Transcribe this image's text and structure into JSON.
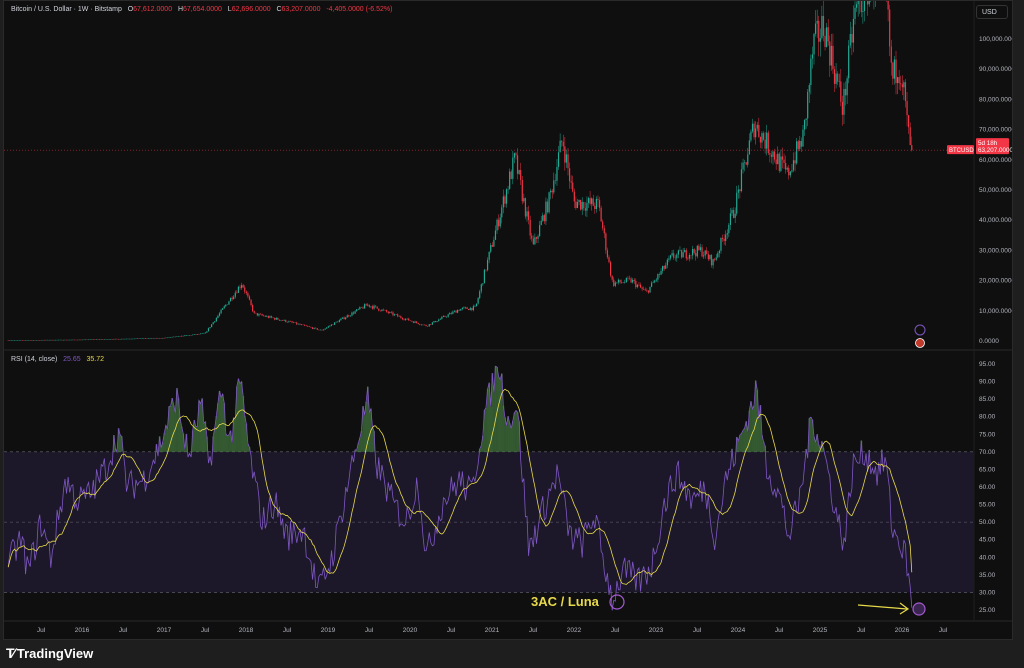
{
  "header": {
    "symbol": "Bitcoin / U.S. Dollar · 1W · Bitstamp",
    "o_label": "O",
    "open": "67,612.0000",
    "h_label": "H",
    "high": "67,654.0000",
    "l_label": "L",
    "low": "62,696.0000",
    "c_label": "C",
    "close": "63,207.0000",
    "change": "-4,405.0000 (-6.52%)"
  },
  "currency_button": "USD",
  "price_tag": {
    "ticker": "BTCUSD",
    "price": "63,207.0000",
    "countdown": "5d 18h"
  },
  "rsi_header": {
    "label": "RSI (14, close)",
    "rsi_value": "25.65",
    "ma_value": "35.72"
  },
  "annotation": "3AC / Luna",
  "footer": {
    "brand": "TradingView"
  },
  "colors": {
    "up": "#22ab94",
    "down": "#f23645",
    "rsi": "#7e57c2",
    "rsi_ma": "#e8d94a",
    "band": "#1c1829"
  },
  "chart_data": [
    {
      "type": "candlestick",
      "title": "Bitcoin / U.S. Dollar · 1W · Bitstamp",
      "ylim": [
        0,
        112000
      ],
      "y_ticks": [
        "0.0000",
        "10,000.0000",
        "20,000.0000",
        "30,000.0000",
        "40,000.0000",
        "50,000.0000",
        "60,000.0000",
        "70,000.0000",
        "80,000.0000",
        "90,000.0000",
        "100,000.0000"
      ],
      "x_ticks": [
        "Jul",
        "2016",
        "Jul",
        "2017",
        "Jul",
        "2018",
        "Jul",
        "2019",
        "Jul",
        "2020",
        "Jul",
        "2021",
        "Jul",
        "2022",
        "Jul",
        "2023",
        "Jul",
        "2024",
        "Jul",
        "2025",
        "Jul",
        "2026",
        "Jul"
      ],
      "close_keypoints": [
        [
          2015.1,
          250
        ],
        [
          2016.0,
          430
        ],
        [
          2017.0,
          1000
        ],
        [
          2017.5,
          2500
        ],
        [
          2017.95,
          19200
        ],
        [
          2018.1,
          9000
        ],
        [
          2018.5,
          6500
        ],
        [
          2018.92,
          3500
        ],
        [
          2019.48,
          12000
        ],
        [
          2019.95,
          7200
        ],
        [
          2020.2,
          5000
        ],
        [
          2020.6,
          10500
        ],
        [
          2020.8,
          11000
        ],
        [
          2021.0,
          32000
        ],
        [
          2021.28,
          60500
        ],
        [
          2021.5,
          31000
        ],
        [
          2021.7,
          47000
        ],
        [
          2021.86,
          67000
        ],
        [
          2022.0,
          46000
        ],
        [
          2022.3,
          45000
        ],
        [
          2022.47,
          19000
        ],
        [
          2022.7,
          20000
        ],
        [
          2022.88,
          16000
        ],
        [
          2023.2,
          28000
        ],
        [
          2023.55,
          30000
        ],
        [
          2023.7,
          26000
        ],
        [
          2023.95,
          43000
        ],
        [
          2024.2,
          72000
        ],
        [
          2024.6,
          55000
        ],
        [
          2024.8,
          68000
        ],
        [
          2024.92,
          98000
        ],
        [
          2025.05,
          105000
        ],
        [
          2025.28,
          77000
        ],
        [
          2025.42,
          108000
        ],
        [
          2025.6,
          118000
        ],
        [
          2025.78,
          124000
        ],
        [
          2025.88,
          86000
        ],
        [
          2025.95,
          92000
        ],
        [
          2026.0,
          88000
        ],
        [
          2026.08,
          68000
        ],
        [
          2026.12,
          63207
        ]
      ],
      "last_price": 63207
    },
    {
      "type": "line",
      "title": "RSI (14, close)",
      "ylim": [
        22,
        97
      ],
      "y_ticks": [
        "25.00",
        "30.00",
        "35.00",
        "40.00",
        "45.00",
        "50.00",
        "55.00",
        "60.00",
        "65.00",
        "70.00",
        "75.00",
        "80.00",
        "85.00",
        "90.00",
        "95.00"
      ],
      "bands": {
        "upper": 70,
        "middle": 50,
        "lower": 30
      },
      "rsi_keypoints": [
        [
          2015.1,
          38
        ],
        [
          2015.25,
          45
        ],
        [
          2015.35,
          36
        ],
        [
          2015.5,
          50
        ],
        [
          2015.62,
          40
        ],
        [
          2015.8,
          62
        ],
        [
          2015.95,
          56
        ],
        [
          2016.1,
          58
        ],
        [
          2016.3,
          66
        ],
        [
          2016.45,
          76
        ],
        [
          2016.55,
          60
        ],
        [
          2016.75,
          62
        ],
        [
          2016.95,
          72
        ],
        [
          2017.15,
          86
        ],
        [
          2017.3,
          68
        ],
        [
          2017.45,
          84
        ],
        [
          2017.55,
          66
        ],
        [
          2017.7,
          88
        ],
        [
          2017.8,
          72
        ],
        [
          2017.93,
          90
        ],
        [
          2018.05,
          68
        ],
        [
          2018.2,
          50
        ],
        [
          2018.35,
          56
        ],
        [
          2018.5,
          46
        ],
        [
          2018.7,
          48
        ],
        [
          2018.88,
          30
        ],
        [
          2019.05,
          40
        ],
        [
          2019.25,
          62
        ],
        [
          2019.48,
          85
        ],
        [
          2019.6,
          66
        ],
        [
          2019.8,
          55
        ],
        [
          2019.95,
          50
        ],
        [
          2020.1,
          62
        ],
        [
          2020.2,
          40
        ],
        [
          2020.4,
          56
        ],
        [
          2020.6,
          62
        ],
        [
          2020.75,
          58
        ],
        [
          2020.9,
          80
        ],
        [
          2021.08,
          95
        ],
        [
          2021.2,
          78
        ],
        [
          2021.3,
          84
        ],
        [
          2021.45,
          42
        ],
        [
          2021.6,
          52
        ],
        [
          2021.8,
          64
        ],
        [
          2021.95,
          46
        ],
        [
          2022.1,
          44
        ],
        [
          2022.25,
          52
        ],
        [
          2022.35,
          40
        ],
        [
          2022.47,
          28
        ],
        [
          2022.6,
          36
        ],
        [
          2022.8,
          33
        ],
        [
          2022.95,
          38
        ],
        [
          2023.1,
          55
        ],
        [
          2023.25,
          64
        ],
        [
          2023.45,
          56
        ],
        [
          2023.6,
          60
        ],
        [
          2023.72,
          46
        ],
        [
          2023.85,
          62
        ],
        [
          2024.0,
          72
        ],
        [
          2024.15,
          82
        ],
        [
          2024.22,
          88
        ],
        [
          2024.35,
          66
        ],
        [
          2024.5,
          58
        ],
        [
          2024.62,
          46
        ],
        [
          2024.75,
          56
        ],
        [
          2024.9,
          80
        ],
        [
          2025.05,
          70
        ],
        [
          2025.2,
          52
        ],
        [
          2025.3,
          44
        ],
        [
          2025.4,
          66
        ],
        [
          2025.55,
          70
        ],
        [
          2025.7,
          64
        ],
        [
          2025.8,
          68
        ],
        [
          2025.88,
          48
        ],
        [
          2025.98,
          44
        ],
        [
          2026.05,
          40
        ],
        [
          2026.12,
          25.65
        ]
      ],
      "ma_period": 14,
      "last_rsi": 25.65,
      "last_ma": 35.72
    }
  ]
}
